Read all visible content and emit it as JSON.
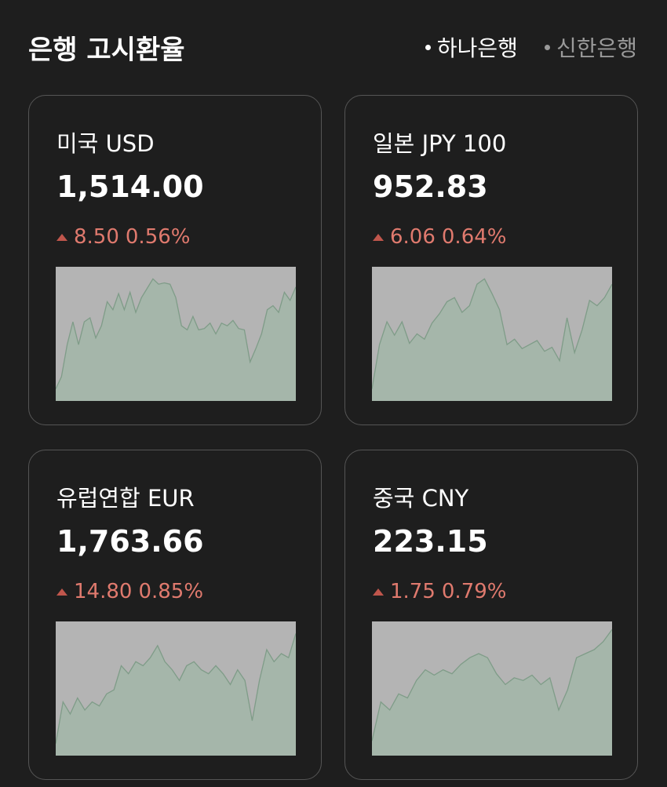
{
  "header": {
    "title": "은행 고시환율",
    "tabs": [
      "하나은행",
      "신한은행"
    ]
  },
  "cards": [
    {
      "name": "미국 USD",
      "rate": "1,514.00",
      "change": "8.50",
      "change_pct": "0.56%",
      "sparkline": [
        9,
        18,
        42,
        59,
        42,
        59,
        62,
        47,
        56,
        74,
        68,
        80,
        68,
        81,
        66,
        77,
        84,
        91,
        87,
        88,
        87,
        77,
        56,
        53,
        63,
        53,
        54,
        58,
        50,
        58,
        56,
        60,
        54,
        53,
        29,
        39,
        50,
        68,
        71,
        66,
        81,
        75,
        85
      ]
    },
    {
      "name": "일본 JPY 100",
      "rate": "952.83",
      "change": "6.06",
      "change_pct": "0.64%",
      "sparkline": [
        9,
        42,
        59,
        49,
        59,
        43,
        50,
        46,
        58,
        65,
        74,
        77,
        66,
        71,
        87,
        91,
        80,
        68,
        42,
        46,
        39,
        42,
        45,
        37,
        40,
        30,
        62,
        36,
        53,
        75,
        71,
        77,
        87
      ]
    },
    {
      "name": "유럽연합 EUR",
      "rate": "1,763.66",
      "change": "14.80",
      "change_pct": "0.85%",
      "sparkline": [
        9,
        40,
        31,
        43,
        34,
        40,
        37,
        46,
        49,
        67,
        61,
        70,
        67,
        73,
        82,
        70,
        64,
        56,
        67,
        70,
        64,
        61,
        67,
        61,
        53,
        64,
        56,
        26,
        56,
        79,
        70,
        76,
        73,
        91
      ]
    },
    {
      "name": "중국 CNY",
      "rate": "223.15",
      "change": "1.75",
      "change_pct": "0.79%",
      "sparkline": [
        11,
        40,
        34,
        46,
        43,
        56,
        64,
        60,
        64,
        61,
        68,
        73,
        76,
        73,
        61,
        53,
        58,
        56,
        60,
        53,
        58,
        34,
        49,
        73,
        76,
        79,
        85,
        94
      ]
    }
  ]
}
